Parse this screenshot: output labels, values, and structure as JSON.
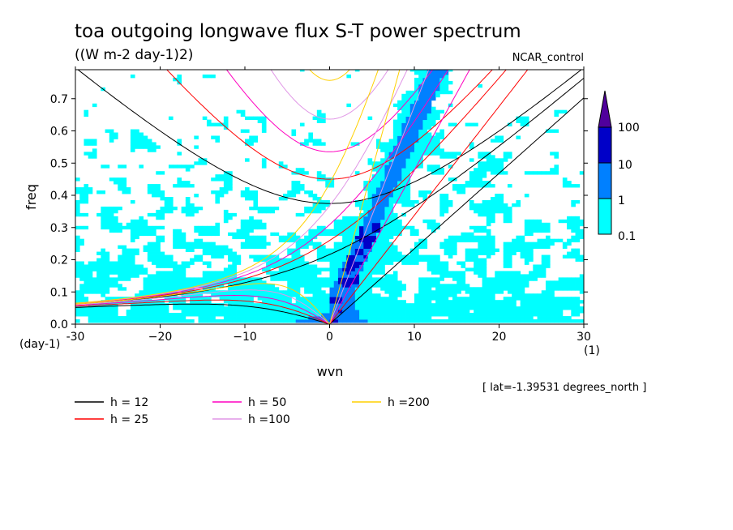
{
  "chart_data": {
    "type": "heatmap",
    "title": "toa outgoing longwave flux S-T power spectrum",
    "subtitle": "((W m-2 day-1)2)",
    "dataset_label": "NCAR_control",
    "xlabel": "wvn",
    "ylabel": "freq",
    "x_units": "(1)",
    "y_units": "(day-1)",
    "xlim": [
      -30,
      30
    ],
    "ylim": [
      0,
      0.79
    ],
    "x_ticks": [
      -30,
      -20,
      -10,
      0,
      10,
      20,
      30
    ],
    "x_tick_labels": [
      "-30",
      "−20",
      "−10",
      "0",
      "10",
      "20",
      "30"
    ],
    "y_ticks": [
      0.0,
      0.1,
      0.2,
      0.3,
      0.4,
      0.5,
      0.6,
      0.7
    ],
    "y_tick_labels": [
      "0.0",
      "0.1",
      "0.2",
      "0.3",
      "0.4",
      "0.5",
      "0.6",
      "0.7"
    ],
    "footnote": "[ lat=-1.39531 degrees_north ]",
    "colorbar": {
      "levels": [
        0.1,
        1,
        10,
        100
      ],
      "level_labels": [
        "0.1",
        "1",
        "10",
        "100"
      ],
      "colors": [
        "#00ffff",
        "#0080ff",
        "#0000c8",
        "#50009c"
      ]
    },
    "contour_fill_colors": [
      "#00ffff",
      "#0080ff",
      "#0000c8"
    ],
    "dispersion_curves": [
      {
        "label": "h = 12",
        "equivalent_depth_m": 12,
        "color": "#000000"
      },
      {
        "label": "h = 25",
        "equivalent_depth_m": 25,
        "color": "#ff0000"
      },
      {
        "label": "h = 50",
        "equivalent_depth_m": 50,
        "color": "#ff00c0"
      },
      {
        "label": "h =100",
        "equivalent_depth_m": 100,
        "color": "#e096e6"
      },
      {
        "label": "h =200",
        "equivalent_depth_m": 200,
        "color": "#ffd000"
      }
    ]
  }
}
